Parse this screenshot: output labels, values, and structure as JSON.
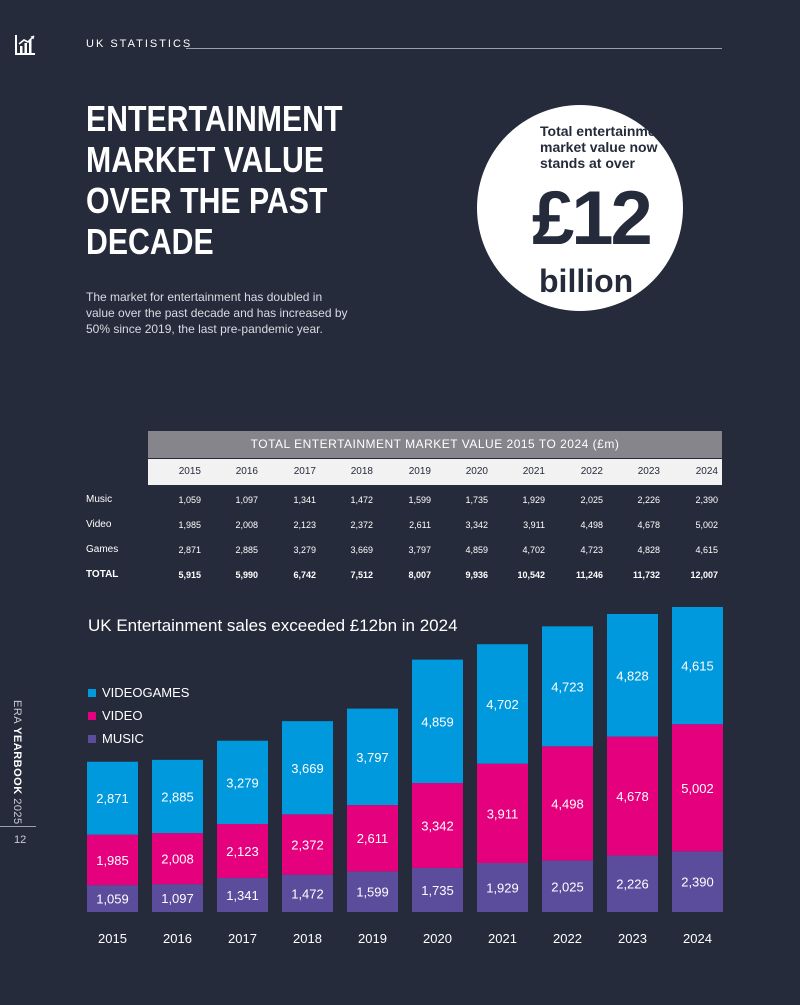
{
  "header": {
    "section": "UK STATISTICS",
    "logo_icon": "bar-chart-icon"
  },
  "headline": [
    "ENTERTAINMENT",
    "MARKET VALUE",
    "OVER THE PAST",
    "DECADE"
  ],
  "intro": "The market for entertainment has doubled in value over the past decade and has increased by 50% since 2019, the last pre-pandemic year.",
  "callout": {
    "text": "Total entertainment market value now stands at over",
    "amount": "£12",
    "unit": "billion"
  },
  "sidebar": {
    "prefix": "ERA ",
    "bold": "YEARBOOK",
    "suffix": " 2025",
    "page": "12"
  },
  "table": {
    "title": "TOTAL ENTERTAINMENT MARKET VALUE 2015 TO 2024 (£m)",
    "years": [
      "2015",
      "2016",
      "2017",
      "2018",
      "2019",
      "2020",
      "2021",
      "2022",
      "2023",
      "2024"
    ],
    "rows": [
      {
        "label": "Music",
        "values": [
          "1,059",
          "1,097",
          "1,341",
          "1,472",
          "1,599",
          "1,735",
          "1,929",
          "2,025",
          "2,226",
          "2,390"
        ]
      },
      {
        "label": "Video",
        "values": [
          "1,985",
          "2,008",
          "2,123",
          "2,372",
          "2,611",
          "3,342",
          "3,911",
          "4,498",
          "4,678",
          "5,002"
        ]
      },
      {
        "label": "Games",
        "values": [
          "2,871",
          "2,885",
          "3,279",
          "3,669",
          "3,797",
          "4,859",
          "4,702",
          "4,723",
          "4,828",
          "4,615"
        ]
      },
      {
        "label": "TOTAL",
        "values": [
          "5,915",
          "5,990",
          "6,742",
          "7,512",
          "8,007",
          "9,936",
          "10,542",
          "11,246",
          "11,732",
          "12,007"
        ]
      }
    ]
  },
  "colors": {
    "background": "#262b3b",
    "music": "#5b4d9b",
    "video": "#e5007d",
    "videogames": "#0099dd"
  },
  "chart_data": {
    "type": "bar",
    "stacked": true,
    "title": "UK Entertainment sales exceeded £12bn in 2024",
    "categories": [
      "2015",
      "2016",
      "2017",
      "2018",
      "2019",
      "2020",
      "2021",
      "2022",
      "2023",
      "2024"
    ],
    "series": [
      {
        "name": "MUSIC",
        "color": "#5b4d9b",
        "values": [
          1059,
          1097,
          1341,
          1472,
          1599,
          1735,
          1929,
          2025,
          2226,
          2390
        ],
        "labels": [
          "1,059",
          "1,097",
          "1,341",
          "1,472",
          "1,599",
          "1,735",
          "1,929",
          "2,025",
          "2,226",
          "2,390"
        ]
      },
      {
        "name": "VIDEO",
        "color": "#e5007d",
        "values": [
          1985,
          2008,
          2123,
          2372,
          2611,
          3342,
          3911,
          4498,
          4678,
          5002
        ],
        "labels": [
          "1,985",
          "2,008",
          "2,123",
          "2,372",
          "2,611",
          "3,342",
          "3,911",
          "4,498",
          "4,678",
          "5,002"
        ]
      },
      {
        "name": "VIDEOGAMES",
        "color": "#0099dd",
        "values": [
          2871,
          2885,
          3279,
          3669,
          3797,
          4859,
          4702,
          4723,
          4828,
          4615
        ],
        "labels": [
          "2,871",
          "2,885",
          "3,279",
          "3,669",
          "3,797",
          "4,859",
          "4,702",
          "4,723",
          "4,828",
          "4,615"
        ]
      }
    ],
    "legend": [
      "VIDEOGAMES",
      "VIDEO",
      "MUSIC"
    ],
    "legend_position": "top-left",
    "ylim": [
      0,
      12007
    ]
  }
}
